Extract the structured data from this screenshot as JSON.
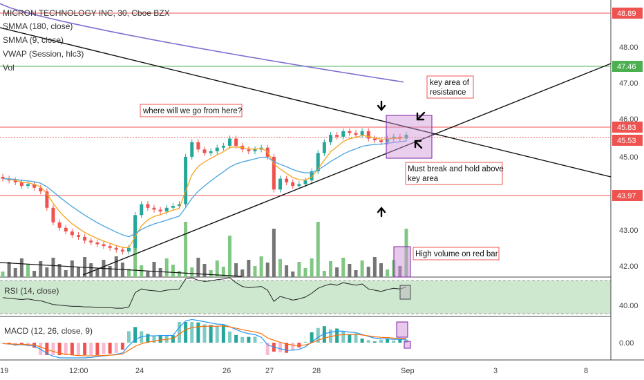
{
  "header": {
    "title": "MICRON TECHNOLOGY INC, 30, Cboe BZX",
    "indicators": [
      "SMMA (180, close)",
      "SMMA (9, close)",
      "VWAP (Session, hlc3)",
      "Vol"
    ]
  },
  "price_axis": {
    "ticks": [
      "48.00",
      "47.00",
      "46.00",
      "45.00",
      "43.00",
      "42.00"
    ],
    "tags": [
      {
        "value": "48.89",
        "color": "#ef5350"
      },
      {
        "value": "47.46",
        "color": "#4caf50"
      },
      {
        "value": "45.83",
        "color": "#ef5350"
      },
      {
        "value": "45.53",
        "color": "#ef5350"
      },
      {
        "value": "43.97",
        "color": "#ef5350"
      }
    ]
  },
  "rsi": {
    "label": "RSI (14, close)",
    "tick": "40.00"
  },
  "macd": {
    "label": "MACD (12, 26, close, 9)",
    "tick": "0.00"
  },
  "time_axis": [
    "19",
    "12:00",
    "24",
    "26",
    "27",
    "28",
    "Sep",
    "3",
    "8"
  ],
  "annotations": {
    "question": "where will we go from here?",
    "resistance": "key area of resistance",
    "resistance_lines": [
      "key area of",
      "resistance"
    ],
    "hold": "Must break and hold above key area",
    "hold_lines": [
      "Must break and hold above",
      "key area"
    ],
    "volume": "High volume on red bar"
  },
  "colors": {
    "up": "#26a69a",
    "down": "#ef5350",
    "vol_up": "#81c784",
    "vol_down": "#757575",
    "smma180": "#7e6fd1",
    "smma9": "#f7a21b",
    "vwap": "#4aa3df",
    "highlight": "#ce93d8",
    "rsi_band": "#a5d6a7"
  },
  "chart_data": {
    "type": "candlestick",
    "title": "MICRON TECHNOLOGY INC, 30, Cboe BZX",
    "horizontal_levels": [
      48.89,
      47.46,
      45.83,
      45.53,
      43.97
    ],
    "y_range": [
      41.7,
      49.3
    ],
    "x_labels": [
      "19",
      "12:00",
      "24",
      "26",
      "27",
      "28",
      "Sep",
      "3",
      "8"
    ],
    "close_path": [
      44.4,
      44.35,
      44.3,
      44.2,
      44.25,
      44.15,
      44.05,
      43.6,
      43.2,
      43.05,
      42.95,
      42.85,
      42.8,
      42.7,
      42.65,
      42.6,
      42.55,
      42.5,
      42.45,
      42.4,
      42.5,
      43.4,
      43.7,
      43.6,
      43.55,
      43.5,
      43.6,
      43.65,
      43.7,
      45.0,
      45.4,
      45.2,
      45.1,
      45.15,
      45.25,
      45.3,
      45.5,
      45.3,
      45.2,
      45.15,
      45.2,
      45.25,
      45.0,
      44.1,
      44.4,
      44.3,
      44.2,
      44.25,
      44.35,
      44.6,
      45.1,
      45.4,
      45.6,
      45.55,
      45.7,
      45.65,
      45.6,
      45.7,
      45.5,
      45.45,
      45.4,
      45.5,
      45.55,
      45.5,
      45.6
    ],
    "rsi_range": [
      20,
      80
    ],
    "rsi_values": [
      48,
      47,
      46,
      45,
      46,
      44,
      43,
      40,
      37,
      36,
      35,
      34,
      34,
      33,
      33,
      32,
      32,
      32,
      31,
      31,
      33,
      56,
      62,
      60,
      59,
      58,
      60,
      61,
      62,
      78,
      80,
      76,
      74,
      75,
      77,
      78,
      80,
      72,
      66,
      64,
      65,
      66,
      60,
      42,
      50,
      47,
      44,
      46,
      49,
      55,
      63,
      67,
      70,
      68,
      72,
      70,
      68,
      70,
      62,
      60,
      58,
      61,
      63,
      62,
      65
    ],
    "macd_range": [
      -0.3,
      0.3
    ]
  }
}
